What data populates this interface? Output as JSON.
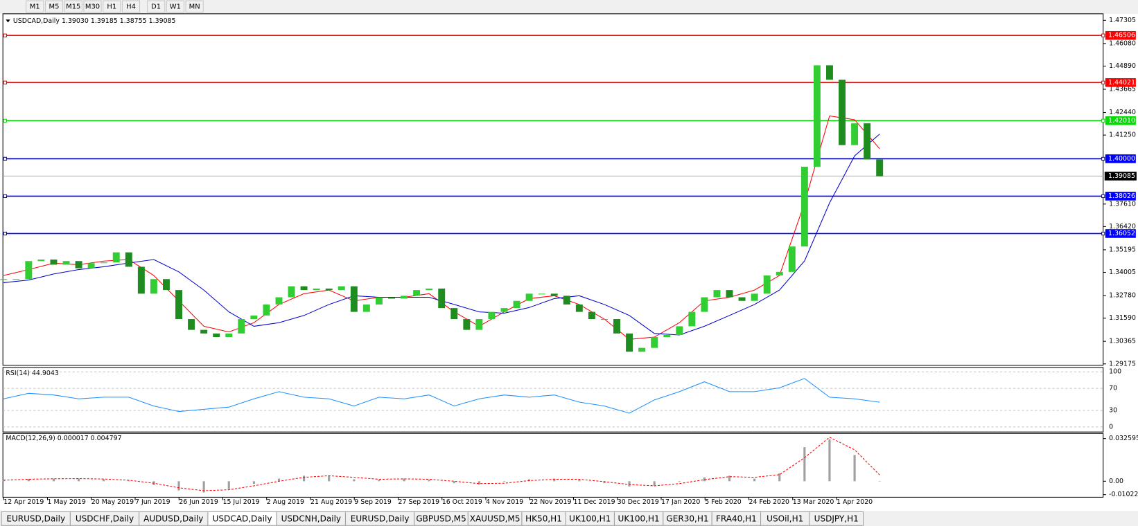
{
  "toolbar": {
    "timeframes": [
      "M1",
      "M5",
      "M15",
      "M30",
      "H1",
      "H4",
      "D1",
      "W1",
      "MN"
    ]
  },
  "chart_data": {
    "type": "candlestick",
    "header": "USDCAD,Daily  1.39030 1.39185 1.38755 1.39085",
    "up_color": "#32cd32",
    "down_color": "#1e8c1e",
    "ylim": [
      1.291,
      1.4765
    ],
    "yticks": [
      1.47305,
      {
        "value": 1.4608,
        "label": "1.46080"
      },
      {
        "value": 1.4489,
        "label": "1.44890"
      },
      1.43665,
      {
        "value": 1.4244,
        "label": "1.42440"
      },
      {
        "value": 1.4125,
        "label": "1.41250"
      },
      {
        "value": 1.3761,
        "label": "1.37610"
      },
      {
        "value": 1.3642,
        "label": "1.36420"
      },
      1.35195,
      1.34005,
      {
        "value": 1.3278,
        "label": "1.32780"
      },
      {
        "value": 1.3159,
        "label": "1.31590"
      },
      1.30365,
      1.29175
    ],
    "levels": [
      {
        "value": 1.46506,
        "color": "#ff0000"
      },
      {
        "value": 1.44021,
        "color": "#ff0000"
      },
      {
        "value": 1.4201,
        "label": "1.42010",
        "color": "#00dd00"
      },
      {
        "value": 1.4,
        "label": "1.40000",
        "color": "#0000ff"
      },
      {
        "value": 1.38026,
        "color": "#0000ff"
      },
      {
        "value": 1.36052,
        "color": "#0000ff"
      }
    ],
    "current_price": 1.39085,
    "values": [
      1.3365,
      1.3365,
      1.346,
      1.3468,
      1.3441,
      1.346,
      1.3422,
      1.3449,
      1.3453,
      1.3506,
      1.343,
      1.3288,
      1.3365,
      1.3307,
      1.3154,
      1.3097,
      1.3078,
      1.3059,
      1.3078,
      1.3154,
      1.3173,
      1.3231,
      1.3269,
      1.3327,
      1.3307,
      1.3315,
      1.3307,
      1.3327,
      1.3192,
      1.3231,
      1.3269,
      1.3262,
      1.3277,
      1.3307,
      1.3315,
      1.3212,
      1.3154,
      1.3097,
      1.3154,
      1.3192,
      1.3212,
      1.325,
      1.3288,
      1.3288,
      1.3277,
      1.3231,
      1.3192,
      1.3154,
      1.3154,
      1.3078,
      1.2982,
      1.3002,
      1.3059,
      1.307,
      1.3116,
      1.3192,
      1.3269,
      1.3307,
      1.3269,
      1.325,
      1.3288,
      1.3384,
      1.3403,
      1.3537,
      1.3958,
      1.4493,
      1.4417,
      1.4072,
      1.4187,
      1.3996,
      1.3908
    ],
    "ma_series": [
      {
        "color": "#ff0000",
        "values": [
          1.3384,
          1.3415,
          1.3449,
          1.3441,
          1.346,
          1.3468,
          1.3384,
          1.325,
          1.3116,
          1.3086,
          1.3135,
          1.3231,
          1.3288,
          1.3307,
          1.325,
          1.3269,
          1.3269,
          1.3288,
          1.3192,
          1.3116,
          1.3192,
          1.3262,
          1.3277,
          1.3231,
          1.3154,
          1.3047,
          1.3059,
          1.3135,
          1.325,
          1.3269,
          1.3307,
          1.3384,
          1.3767,
          1.4226,
          1.4206,
          1.4053
        ]
      },
      {
        "color": "#0000cc",
        "values": [
          1.3346,
          1.336,
          1.3392,
          1.3415,
          1.343,
          1.345,
          1.3468,
          1.3403,
          1.3307,
          1.3192,
          1.3116,
          1.3135,
          1.3173,
          1.3231,
          1.3277,
          1.3269,
          1.3269,
          1.3269,
          1.3231,
          1.3192,
          1.3185,
          1.3215,
          1.3262,
          1.3277,
          1.3231,
          1.3173,
          1.3078,
          1.307,
          1.3116,
          1.3173,
          1.3231,
          1.3307,
          1.3461,
          1.3767,
          1.4015,
          1.413
        ]
      }
    ],
    "date_labels": [
      "12 Apr 2019",
      "1 May 2019",
      "20 May 2019",
      "7 Jun 2019",
      "26 Jun 2019",
      "15 Jul 2019",
      "2 Aug 2019",
      "21 Aug 2019",
      "9 Sep 2019",
      "27 Sep 2019",
      "16 Oct 2019",
      "4 Nov 2019",
      "22 Nov 2019",
      "11 Dec 2019",
      "30 Dec 2019",
      "17 Jan 2020",
      "5 Feb 2020",
      "24 Feb 2020",
      "13 Mar 2020",
      "1 Apr 2020"
    ],
    "rsi": {
      "label": "RSI(14) 44.9043",
      "color": "#1e90ff",
      "ylim": [
        -9.2,
        107.9
      ],
      "yticks": [
        100,
        70,
        30,
        0
      ],
      "values": [
        51,
        61,
        58,
        51,
        54,
        54,
        38,
        28,
        32,
        36,
        51,
        64,
        54,
        51,
        38,
        54,
        51,
        58,
        38,
        51,
        58,
        54,
        58,
        45,
        38,
        25,
        49,
        64,
        82,
        64,
        64,
        71,
        88,
        54,
        51,
        44.9
      ]
    },
    "macd": {
      "label": "MACD(12,26,9) 0.000017 0.004797",
      "hist_color": "#a0a0a0",
      "signal_color": "#ff0000",
      "ylim": [
        -0.0122,
        0.0365
      ],
      "yticks": [
        0.032595,
        {
          "value": 0,
          "label": "0.00"
        },
        -0.010227
      ],
      "hist": [
        0.0012,
        0.0018,
        0.002,
        0.002,
        0.0015,
        0.0005,
        -0.003,
        -0.007,
        -0.0085,
        -0.006,
        -0.002,
        0.002,
        0.0042,
        0.0044,
        0.0015,
        0.001,
        0.002,
        0.0012,
        -0.0015,
        -0.0025,
        -0.0005,
        0.0015,
        0.002,
        0.001,
        -0.0015,
        -0.004,
        -0.0035,
        -0.0005,
        0.003,
        0.0042,
        0.002,
        0.006,
        0.026,
        0.032,
        0.02,
        1.7e-05
      ],
      "signal": [
        0.0008,
        0.0015,
        0.0019,
        0.002,
        0.0017,
        0.0008,
        -0.0015,
        -0.005,
        -0.0072,
        -0.0065,
        -0.0035,
        0,
        0.003,
        0.0042,
        0.003,
        0.0015,
        0.0018,
        0.0015,
        0,
        -0.0018,
        -0.0015,
        0.0005,
        0.0015,
        0.0015,
        -0.0003,
        -0.0025,
        -0.0035,
        -0.0018,
        0.0012,
        0.0035,
        0.003,
        0.005,
        0.018,
        0.0336,
        0.024,
        0.004797
      ]
    }
  },
  "tabs": {
    "items": [
      "EURUSD,Daily",
      "USDCHF,Daily",
      "AUDUSD,Daily",
      "USDCAD,Daily",
      "USDCNH,Daily",
      "EURUSD,Daily",
      "GBPUSD,M5",
      "XAUUSD,M5",
      "HK50,H1",
      "UK100,H1",
      "UK100,H1",
      "GER30,H1",
      "FRA40,H1",
      "USOil,H1",
      "USDJPY,H1"
    ],
    "active": 3
  }
}
